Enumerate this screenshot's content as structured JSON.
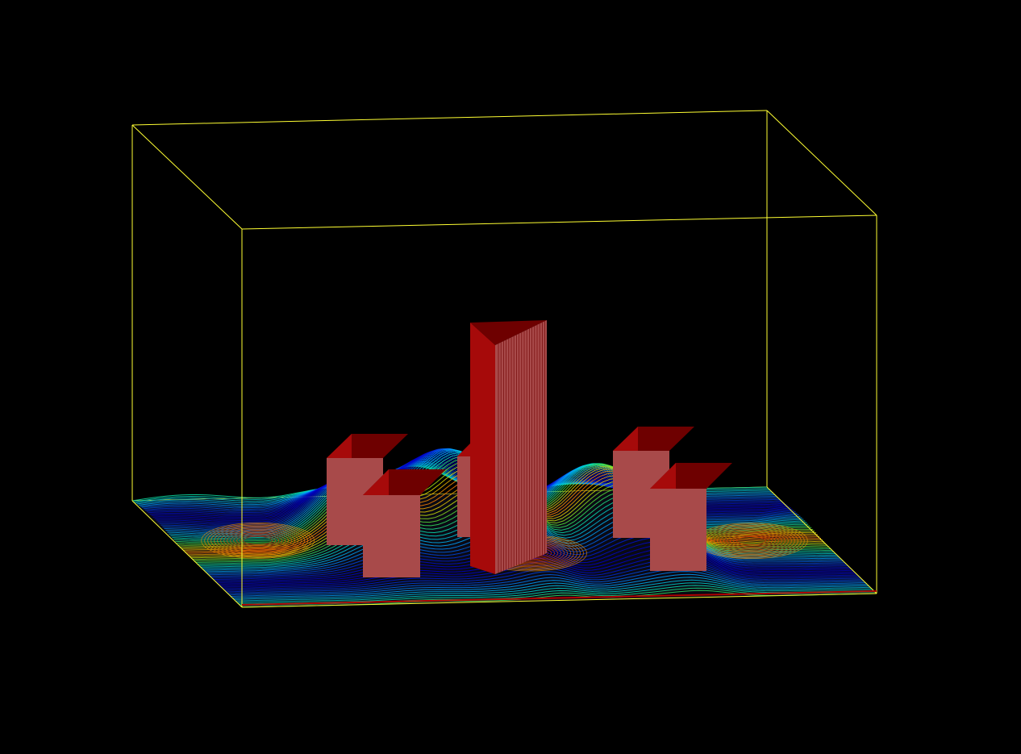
{
  "scene": {
    "type": "3d-cfd-visualization",
    "background_color": "#000000",
    "bounding_box_color": "#ffff33",
    "bounding_box_style": "wireframe",
    "ground_plane": "streamline-contours",
    "streamline_colormap": [
      "#0000c8",
      "#00a0ff",
      "#00e0c0",
      "#40e040",
      "#e0e000",
      "#ff8000",
      "#e00000"
    ],
    "obstacles": {
      "count": 5,
      "shape": "rectangular-block",
      "arrangement": "two-rows-of-two-low-blocks-around-one-central-tower",
      "front_face_color": "#a84a4a",
      "side_face_color": "#a60a0a",
      "top_face_color": "#6e0000",
      "tower_line_color": "#7a1010"
    },
    "features": [
      "wake-vortices",
      "flow-separation-around-blocks",
      "recirculation-zones"
    ]
  }
}
